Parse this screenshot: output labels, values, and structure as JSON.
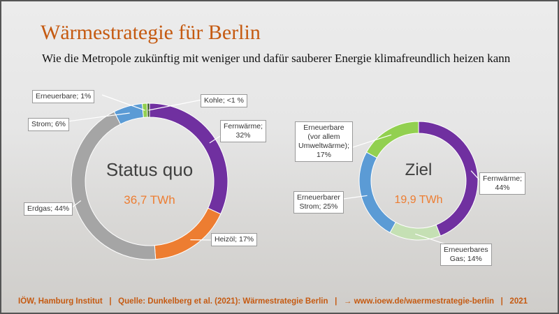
{
  "header": {
    "title": "Wärmestrategie für Berlin",
    "subtitle": "Wie die Metropole zukünftig mit weniger und dafür sauberer Energie klimafreundlich heizen kann"
  },
  "chart_data": [
    {
      "type": "pie",
      "donut": true,
      "center_title": "Status quo",
      "center_value": "36,7 TWh",
      "values": [
        32,
        17,
        44,
        6,
        1,
        0.5
      ],
      "value_labels": [
        "Fernwärme;\n32%",
        "Heizöl; 17%",
        "Erdgas; 44%",
        "Strom; 6%",
        "Erneuerbare; 1%",
        "Kohle; <1 %"
      ],
      "colors": [
        "#7030a0",
        "#ed7d31",
        "#a5a5a5",
        "#5b9bd5",
        "#92d050",
        "#375623"
      ]
    },
    {
      "type": "pie",
      "donut": true,
      "center_title": "Ziel",
      "center_value": "19,9 TWh",
      "values": [
        44,
        14,
        25,
        17
      ],
      "value_labels": [
        "Fernwärme;\n44%",
        "Erneuerbares\nGas; 14%",
        "Erneuerbarer\nStrom; 25%",
        "Erneuerbare\n(vor allem\nUmweltwärme);\n17%"
      ],
      "colors": [
        "#7030a0",
        "#c5e0b4",
        "#5b9bd5",
        "#92d050"
      ]
    }
  ],
  "footer": "IÖW, Hamburg Institut   |   Quelle: Dunkelberg et al. (2021): Wärmestrategie Berlin   |   → www.ioew.de/waermestrategie-berlin   |   2021"
}
